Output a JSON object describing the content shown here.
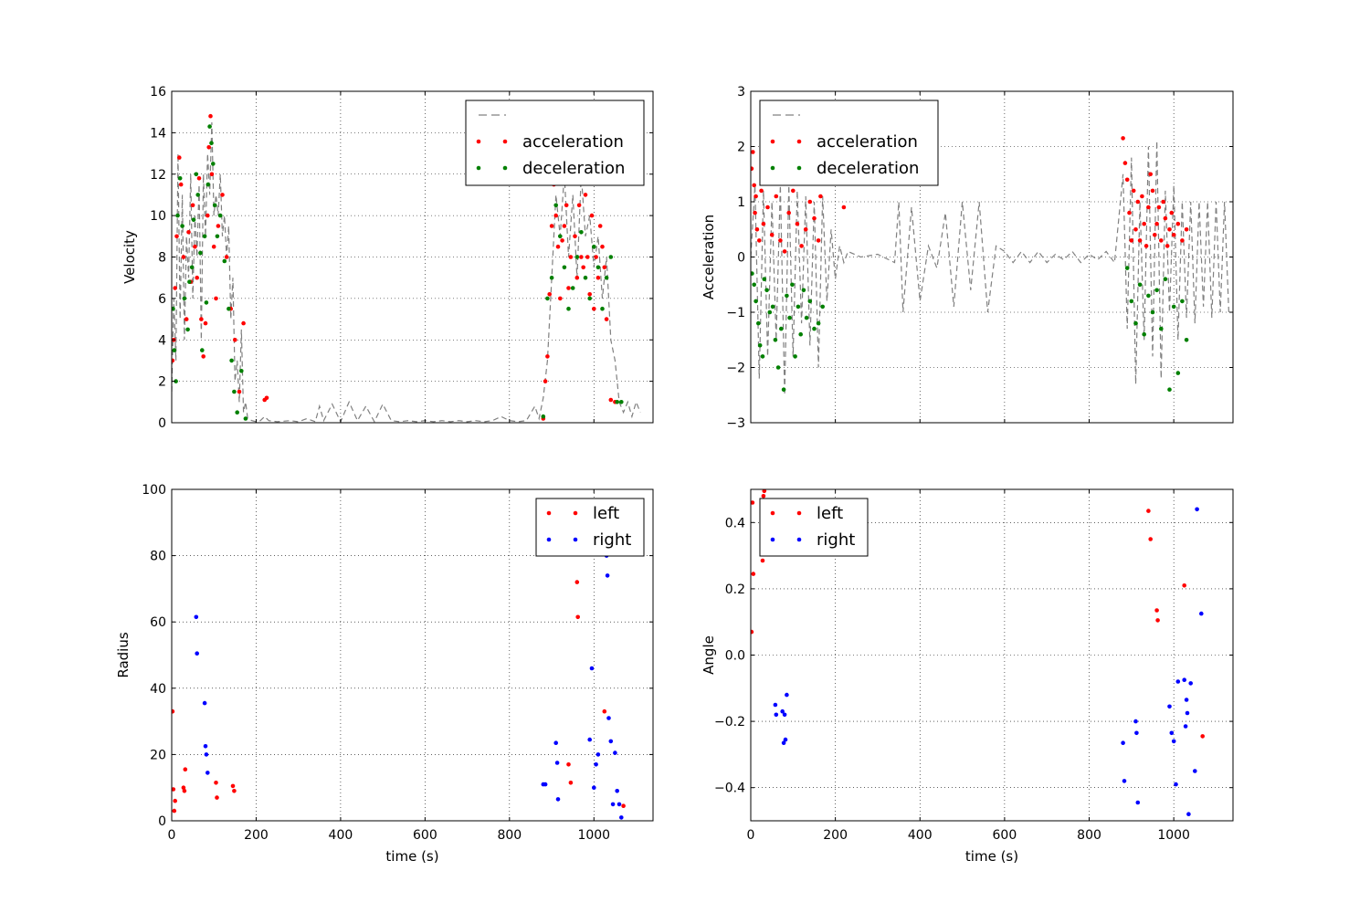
{
  "chart_data": [
    {
      "type": "scatter",
      "panel": "velocity",
      "xlabel": "",
      "ylabel": "Velocity",
      "xlim": [
        0,
        1140
      ],
      "ylim": [
        0,
        16
      ],
      "xticks": [
        0,
        200,
        400,
        600,
        800,
        1000
      ],
      "yticks": [
        0,
        2,
        4,
        6,
        8,
        10,
        12,
        14,
        16
      ],
      "show_x_ticklabels": false,
      "grid": true,
      "legend_position": "upper-right",
      "series": [
        {
          "name": "",
          "style": "dashed-line",
          "color": "#808080",
          "x": [
            0,
            5,
            10,
            15,
            20,
            25,
            30,
            35,
            40,
            45,
            50,
            55,
            60,
            65,
            70,
            75,
            80,
            85,
            90,
            95,
            100,
            105,
            110,
            115,
            120,
            125,
            130,
            135,
            140,
            145,
            150,
            155,
            160,
            165,
            170,
            175,
            180,
            190,
            200,
            210,
            220,
            230,
            250,
            280,
            300,
            320,
            340,
            350,
            360,
            380,
            400,
            420,
            440,
            460,
            480,
            500,
            520,
            540,
            560,
            580,
            600,
            620,
            640,
            660,
            680,
            700,
            720,
            740,
            760,
            780,
            800,
            820,
            840,
            860,
            870,
            880,
            890,
            900,
            910,
            920,
            930,
            940,
            950,
            960,
            970,
            980,
            990,
            1000,
            1010,
            1020,
            1030,
            1040,
            1050,
            1060,
            1070,
            1080,
            1090,
            1100,
            1110
          ],
          "y": [
            1.5,
            6,
            3,
            13,
            5,
            11,
            4,
            9,
            7,
            12,
            6,
            10,
            8,
            11.5,
            4,
            12,
            9,
            13,
            11,
            14.5,
            10,
            11,
            10,
            12,
            9,
            10,
            8,
            9.5,
            5,
            7,
            2,
            3,
            1,
            4.5,
            0.5,
            1,
            0.2,
            0.1,
            0.05,
            0.1,
            0.3,
            0.1,
            0.05,
            0.1,
            0.05,
            0.2,
            0.05,
            0.8,
            0.1,
            0.9,
            0.05,
            1,
            0.1,
            0.8,
            0.05,
            0.9,
            0.1,
            0.05,
            0.1,
            0.05,
            0.1,
            0.05,
            0.1,
            0.05,
            0.1,
            0.05,
            0.1,
            0.05,
            0.1,
            0.3,
            0.1,
            0.05,
            0.1,
            0.8,
            0.2,
            1.2,
            3,
            7,
            11,
            9,
            12,
            8,
            11,
            7,
            12,
            9,
            10,
            7.5,
            9,
            6,
            8,
            4,
            3,
            1,
            0.5,
            1,
            0.3,
            1,
            0.5
          ]
        },
        {
          "name": "acceleration",
          "style": "points",
          "color": "#ff0000",
          "x": [
            2,
            5,
            8,
            12,
            18,
            22,
            28,
            35,
            40,
            45,
            50,
            55,
            60,
            65,
            70,
            75,
            80,
            85,
            88,
            92,
            95,
            100,
            105,
            110,
            120,
            130,
            140,
            150,
            160,
            170,
            220,
            225,
            880,
            885,
            890,
            895,
            900,
            905,
            910,
            915,
            920,
            925,
            930,
            935,
            940,
            945,
            950,
            955,
            960,
            965,
            970,
            975,
            980,
            985,
            990,
            995,
            1000,
            1005,
            1010,
            1015,
            1020,
            1025,
            1030,
            1040,
            1050
          ],
          "y": [
            3,
            4,
            6.5,
            9,
            12.8,
            11.5,
            8,
            5,
            9.2,
            6.8,
            10.5,
            8.5,
            7,
            11.8,
            5,
            3.2,
            4.8,
            10,
            13.3,
            14.8,
            12,
            8.5,
            6,
            9.5,
            11,
            8,
            5.5,
            4,
            1.5,
            4.8,
            1.1,
            1.2,
            0.2,
            2,
            3.2,
            6.2,
            9.5,
            11.5,
            10,
            8.5,
            6,
            8.8,
            9.5,
            10.5,
            6.5,
            8,
            12,
            9,
            7,
            10.5,
            8,
            7.5,
            11,
            8,
            6.2,
            10,
            5.5,
            8,
            7,
            9.5,
            8.5,
            7.5,
            5,
            1.1,
            1
          ]
        },
        {
          "name": "deceleration",
          "style": "points",
          "color": "#008000",
          "x": [
            3,
            6,
            10,
            14,
            20,
            25,
            30,
            38,
            42,
            48,
            52,
            58,
            62,
            68,
            72,
            78,
            82,
            86,
            90,
            94,
            98,
            102,
            108,
            115,
            125,
            135,
            142,
            148,
            155,
            165,
            175,
            880,
            890,
            900,
            910,
            920,
            930,
            940,
            950,
            960,
            970,
            980,
            990,
            1000,
            1010,
            1020,
            1030,
            1040,
            1055,
            1065
          ],
          "y": [
            5.5,
            3.5,
            2,
            10,
            11.8,
            9.5,
            6,
            4.5,
            6.8,
            7.5,
            9.8,
            12,
            11,
            8.2,
            3.5,
            9,
            5.8,
            11.5,
            14.3,
            13.5,
            12.5,
            10.5,
            9,
            10,
            7.8,
            5.5,
            3,
            1.5,
            0.5,
            2.5,
            0.2,
            0.3,
            6,
            7,
            10.5,
            9,
            7.5,
            5.5,
            6.5,
            8,
            9.2,
            7,
            6,
            8.5,
            7.5,
            5.5,
            7,
            8,
            1,
            1
          ]
        }
      ]
    },
    {
      "type": "scatter",
      "panel": "acceleration",
      "xlabel": "",
      "ylabel": "Acceleration",
      "xlim": [
        0,
        1140
      ],
      "ylim": [
        -3,
        3
      ],
      "xticks": [
        0,
        200,
        400,
        600,
        800,
        1000
      ],
      "yticks": [
        -3,
        -2,
        -1,
        0,
        1,
        2,
        3
      ],
      "show_x_ticklabels": false,
      "grid": true,
      "legend_position": "upper-left",
      "series": [
        {
          "name": "",
          "style": "dashed-line",
          "color": "#808080",
          "x": [
            0,
            10,
            20,
            30,
            40,
            50,
            60,
            70,
            80,
            90,
            100,
            110,
            120,
            130,
            140,
            150,
            160,
            170,
            180,
            190,
            200,
            210,
            220,
            230,
            260,
            300,
            340,
            350,
            360,
            380,
            400,
            420,
            440,
            460,
            480,
            500,
            520,
            540,
            560,
            580,
            600,
            620,
            640,
            660,
            680,
            700,
            720,
            740,
            760,
            780,
            800,
            820,
            840,
            860,
            880,
            890,
            900,
            910,
            920,
            930,
            940,
            950,
            960,
            970,
            980,
            990,
            1000,
            1010,
            1020,
            1030,
            1040,
            1050,
            1060,
            1070,
            1080,
            1090,
            1100,
            1110,
            1120,
            1130
          ],
          "y": [
            0,
            1.3,
            -2.2,
            1.2,
            -1.8,
            1,
            -1.5,
            1.3,
            -2.5,
            1.3,
            -1.8,
            1.2,
            -1.2,
            1.1,
            -1.6,
            1,
            -2,
            1.1,
            -0.8,
            0.5,
            -0.4,
            0.2,
            -0.1,
            0.1,
            0,
            0.05,
            -0.1,
            1,
            -1,
            0.9,
            -0.8,
            0.2,
            -0.2,
            0.8,
            -0.9,
            1,
            -0.6,
            1,
            -1,
            0.2,
            0.1,
            -0.1,
            0.1,
            -0.1,
            0.1,
            -0.1,
            0.05,
            -0.05,
            0.1,
            -0.1,
            0.05,
            -0.05,
            0.1,
            -0.1,
            1.5,
            -1.3,
            1.8,
            -2.3,
            1,
            -1.5,
            2,
            -1.8,
            2.1,
            -2.2,
            1.2,
            -1,
            1.3,
            -1.5,
            1,
            -1.1,
            1,
            -1.2,
            1,
            -0.9,
            1,
            -1.1,
            1,
            -1,
            1,
            -1
          ]
        },
        {
          "name": "acceleration",
          "style": "points",
          "color": "#ff0000",
          "x": [
            2,
            5,
            8,
            10,
            12,
            15,
            20,
            25,
            30,
            40,
            50,
            60,
            70,
            80,
            90,
            100,
            110,
            120,
            130,
            140,
            150,
            160,
            165,
            220,
            880,
            885,
            890,
            895,
            900,
            905,
            910,
            915,
            920,
            925,
            930,
            935,
            940,
            945,
            950,
            955,
            960,
            965,
            970,
            975,
            980,
            985,
            990,
            995,
            1000,
            1010,
            1020,
            1030
          ],
          "y": [
            1.6,
            1.9,
            1.3,
            0.8,
            1.1,
            0.5,
            0.3,
            1.2,
            0.6,
            0.9,
            0.4,
            1.1,
            0.3,
            0.1,
            0.8,
            1.2,
            0.6,
            0.2,
            0.5,
            1,
            0.7,
            0.3,
            1.1,
            0.9,
            2.15,
            1.7,
            1.4,
            0.8,
            0.3,
            1.2,
            0.5,
            1,
            0.3,
            1.1,
            0.6,
            0.2,
            0.9,
            1.5,
            1.2,
            0.4,
            0.6,
            0.9,
            0.3,
            1,
            0.7,
            0.2,
            0.5,
            0.8,
            0.4,
            0.6,
            0.3,
            0.5
          ]
        },
        {
          "name": "deceleration",
          "style": "points",
          "color": "#008000",
          "x": [
            3,
            8,
            12,
            18,
            22,
            28,
            32,
            38,
            45,
            52,
            58,
            65,
            72,
            78,
            85,
            92,
            98,
            105,
            112,
            118,
            125,
            132,
            140,
            150,
            160,
            170,
            890,
            900,
            910,
            920,
            930,
            940,
            950,
            960,
            970,
            980,
            990,
            1000,
            1010,
            1020,
            1030
          ],
          "y": [
            -0.3,
            -0.5,
            -0.8,
            -1.2,
            -1.6,
            -1.8,
            -0.4,
            -0.6,
            -1,
            -0.9,
            -1.5,
            -2,
            -1.3,
            -2.4,
            -0.7,
            -1.1,
            -0.5,
            -1.8,
            -0.9,
            -1.4,
            -0.6,
            -1.1,
            -0.8,
            -1.3,
            -1.2,
            -0.9,
            -0.2,
            -0.8,
            -1.2,
            -0.5,
            -1.4,
            -0.7,
            -1,
            -0.6,
            -1.3,
            -0.4,
            -2.4,
            -0.9,
            -2.1,
            -0.8,
            -1.5
          ]
        }
      ]
    },
    {
      "type": "scatter",
      "panel": "radius",
      "xlabel": "time (s)",
      "ylabel": "Radius",
      "xlim": [
        0,
        1140
      ],
      "ylim": [
        0,
        100
      ],
      "xticks": [
        0,
        200,
        400,
        600,
        800,
        1000
      ],
      "yticks": [
        0,
        20,
        40,
        60,
        80,
        100
      ],
      "show_x_ticklabels": true,
      "grid": true,
      "legend_position": "upper-right",
      "series": [
        {
          "name": "left",
          "style": "points",
          "color": "#ff0000",
          "x": [
            2,
            4,
            6,
            8,
            28,
            30,
            32,
            105,
            107,
            145,
            148,
            940,
            945,
            960,
            962,
            1025,
            1070
          ],
          "y": [
            33,
            9.5,
            3,
            6,
            10,
            9,
            15.5,
            11.5,
            7,
            10.5,
            9,
            17,
            11.5,
            72,
            61.5,
            33,
            4.5
          ]
        },
        {
          "name": "right",
          "style": "points",
          "color": "#0000ff",
          "x": [
            58,
            60,
            78,
            80,
            82,
            85,
            880,
            885,
            910,
            913,
            915,
            990,
            995,
            1000,
            1005,
            1010,
            1030,
            1032,
            1035,
            1040,
            1045,
            1050,
            1055,
            1060,
            1065
          ],
          "y": [
            61.5,
            50.5,
            35.5,
            22.5,
            20,
            14.5,
            11,
            11,
            23.5,
            17.5,
            6.5,
            24.5,
            46,
            10,
            17,
            20,
            80,
            74,
            31,
            24,
            5,
            20.5,
            9,
            5,
            1
          ]
        }
      ]
    },
    {
      "type": "scatter",
      "panel": "angle",
      "xlabel": "time (s)",
      "ylabel": "Angle",
      "xlim": [
        0,
        1140
      ],
      "ylim": [
        -0.5,
        0.5
      ],
      "xticks": [
        0,
        200,
        400,
        600,
        800,
        1000
      ],
      "yticks": [
        -0.4,
        -0.2,
        0.0,
        0.2,
        0.4
      ],
      "ytick_labels": [
        "−0.4",
        "−0.2",
        "0.0",
        "0.2",
        "0.4"
      ],
      "show_x_ticklabels": true,
      "grid": true,
      "legend_position": "upper-left",
      "series": [
        {
          "name": "left",
          "style": "points",
          "color": "#ff0000",
          "x": [
            2,
            4,
            6,
            28,
            30,
            32,
            940,
            945,
            960,
            962,
            1025,
            1068
          ],
          "y": [
            0.07,
            0.46,
            0.245,
            0.285,
            0.48,
            0.495,
            0.435,
            0.35,
            0.135,
            0.105,
            0.21,
            -0.245
          ]
        },
        {
          "name": "right",
          "style": "points",
          "color": "#0000ff",
          "x": [
            58,
            60,
            75,
            78,
            80,
            82,
            85,
            880,
            883,
            910,
            912,
            915,
            990,
            995,
            1000,
            1005,
            1010,
            1025,
            1028,
            1030,
            1032,
            1035,
            1040,
            1050,
            1055,
            1065
          ],
          "y": [
            -0.15,
            -0.18,
            -0.17,
            -0.265,
            -0.18,
            -0.255,
            -0.12,
            -0.265,
            -0.38,
            -0.2,
            -0.235,
            -0.445,
            -0.155,
            -0.235,
            -0.26,
            -0.39,
            -0.08,
            -0.075,
            -0.215,
            -0.135,
            -0.175,
            -0.48,
            -0.085,
            -0.35,
            0.44,
            0.125
          ]
        }
      ]
    }
  ]
}
